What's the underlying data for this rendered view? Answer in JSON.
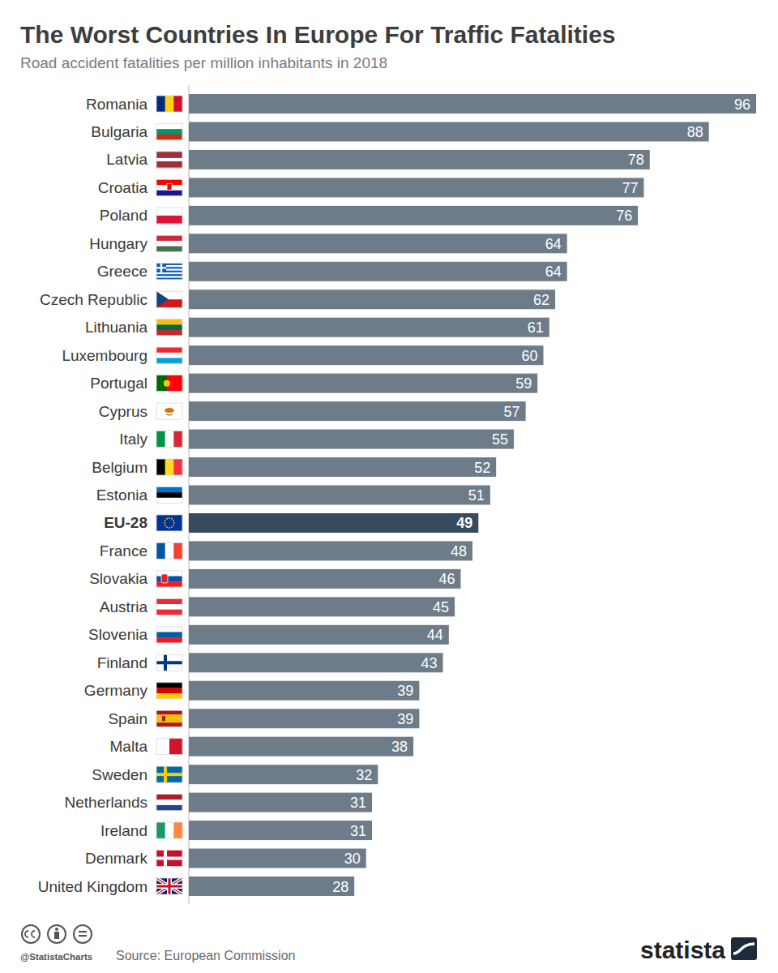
{
  "chart_data": {
    "type": "bar",
    "orientation": "horizontal",
    "title": "The Worst Countries In Europe For Traffic Fatalities",
    "subtitle": "Road accident fatalities per million inhabitants in 2018",
    "source": "Source: European Commission",
    "annotations": [
      "@StatistaCharts",
      "statista"
    ],
    "categories": [
      "Romania",
      "Bulgaria",
      "Latvia",
      "Croatia",
      "Poland",
      "Hungary",
      "Greece",
      "Czech Republic",
      "Lithuania",
      "Luxembourg",
      "Portugal",
      "Cyprus",
      "Italy",
      "Belgium",
      "Estonia",
      "EU-28",
      "France",
      "Slovakia",
      "Austria",
      "Slovenia",
      "Finland",
      "Germany",
      "Spain",
      "Malta",
      "Sweden",
      "Netherlands",
      "Ireland",
      "Denmark",
      "United Kingdom"
    ],
    "values": [
      96,
      88,
      78,
      77,
      76,
      64,
      64,
      62,
      61,
      60,
      59,
      57,
      55,
      52,
      51,
      49,
      48,
      46,
      45,
      44,
      43,
      39,
      39,
      38,
      32,
      31,
      31,
      30,
      28
    ],
    "colors": [
      "#6e7c8a",
      "#6e7c8a",
      "#6e7c8a",
      "#6e7c8a",
      "#6e7c8a",
      "#6e7c8a",
      "#6e7c8a",
      "#6e7c8a",
      "#6e7c8a",
      "#6e7c8a",
      "#6e7c8a",
      "#6e7c8a",
      "#6e7c8a",
      "#6e7c8a",
      "#6e7c8a",
      "#364a5e",
      "#6e7c8a",
      "#6e7c8a",
      "#6e7c8a",
      "#6e7c8a",
      "#6e7c8a",
      "#6e7c8a",
      "#6e7c8a",
      "#6e7c8a",
      "#6e7c8a",
      "#6e7c8a",
      "#6e7c8a",
      "#6e7c8a",
      "#6e7c8a"
    ],
    "xlim": [
      0,
      96
    ],
    "data_labels": true,
    "tick_labels": false,
    "grid": false
  }
}
